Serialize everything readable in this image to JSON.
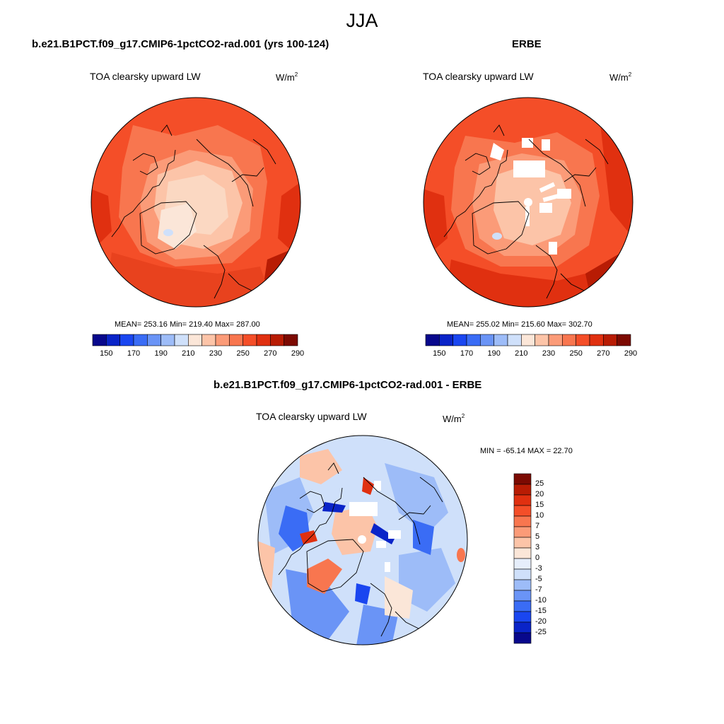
{
  "season": "JJA",
  "panels": [
    {
      "case": "b.e21.B1PCT.f09_g17.CMIP6-1pctCO2-rad.001 (yrs 100-124)",
      "variable": "TOA clearsky upward LW",
      "units_base": "W/m",
      "units_exp": "2",
      "stats": "MEAN= 253.16  Min= 219.40  Max= 287.00"
    },
    {
      "case": "ERBE",
      "variable": "TOA clearsky upward LW",
      "units_base": "W/m",
      "units_exp": "2",
      "stats": "MEAN= 255.02  Min= 215.60  Max= 302.70"
    },
    {
      "case": "b.e21.B1PCT.f09_g17.CMIP6-1pctCO2-rad.001 - ERBE",
      "variable": "TOA clearsky upward LW",
      "units_base": "W/m",
      "units_exp": "2",
      "stats": "MIN = -65.14 MAX =  22.70"
    }
  ],
  "abs_colorbar": {
    "ticks": [
      "150",
      "170",
      "190",
      "210",
      "230",
      "250",
      "270",
      "290"
    ],
    "colors": [
      "#08088c",
      "#0a24c8",
      "#1a46f0",
      "#3a6cf5",
      "#6a94f6",
      "#9dbcf8",
      "#cfe0fa",
      "#fbe6d8",
      "#fcc4a8",
      "#fb9b78",
      "#f8764f",
      "#f44e28",
      "#e03010",
      "#b81c04",
      "#7c0a02"
    ]
  },
  "diff_colorbar": {
    "ticks": [
      "25",
      "20",
      "15",
      "10",
      "7",
      "5",
      "3",
      "0",
      "-3",
      "-5",
      "-7",
      "-10",
      "-15",
      "-20",
      "-25"
    ],
    "colors": [
      "#7c0a02",
      "#b81c04",
      "#e03010",
      "#f44e28",
      "#f8764f",
      "#fb9b78",
      "#fcc4a8",
      "#fbe6d8",
      "#e6eefb",
      "#cfe0fa",
      "#9dbcf8",
      "#6a94f6",
      "#3a6cf5",
      "#1a46f0",
      "#0a24c8",
      "#08088c"
    ]
  }
}
